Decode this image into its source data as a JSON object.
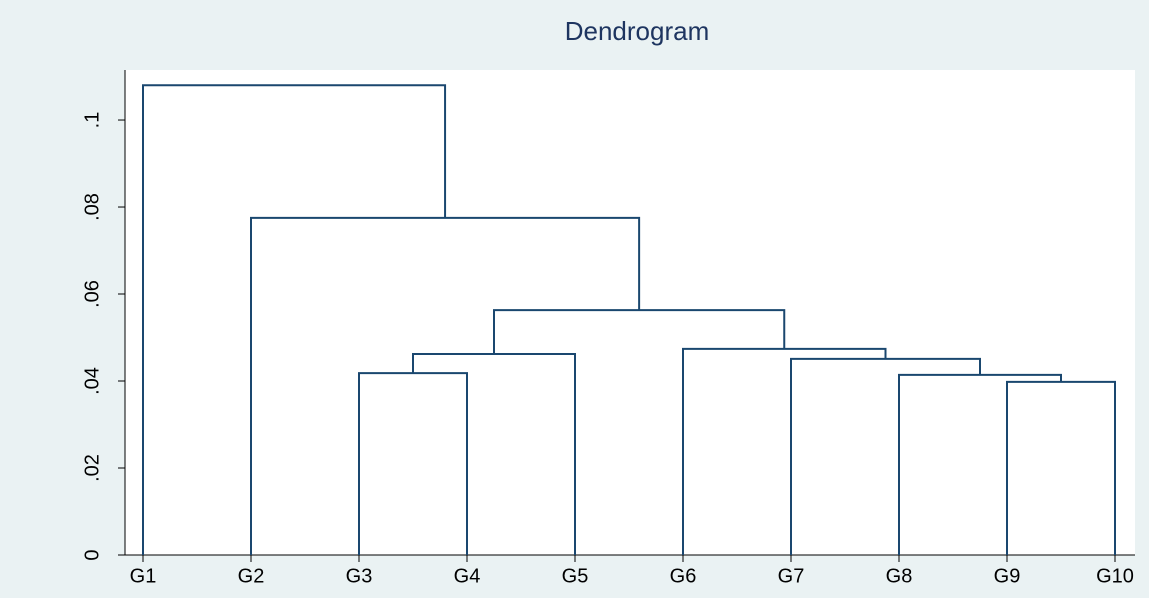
{
  "chart_data": {
    "type": "dendrogram",
    "title": "Dendrogram",
    "categories": [
      "G1",
      "G2",
      "G3",
      "G4",
      "G5",
      "G6",
      "G7",
      "G8",
      "G9",
      "G10"
    ],
    "merges": [
      {
        "join": [
          8,
          9
        ],
        "height": 0.0398
      },
      {
        "join": [
          7,
          10
        ],
        "height": 0.0414
      },
      {
        "join": [
          2,
          3
        ],
        "height": 0.0418
      },
      {
        "join": [
          6,
          11
        ],
        "height": 0.0451
      },
      {
        "join": [
          12,
          4
        ],
        "height": 0.0462
      },
      {
        "join": [
          5,
          13
        ],
        "height": 0.0474
      },
      {
        "join": [
          14,
          15
        ],
        "height": 0.0563
      },
      {
        "join": [
          1,
          16
        ],
        "height": 0.0775
      },
      {
        "join": [
          0,
          17
        ],
        "height": 0.108
      }
    ],
    "color": "#1a476f",
    "ylim": [
      0,
      0.1115
    ],
    "yticks": [
      0,
      {
        "value": 0.02,
        "label": ".02"
      },
      {
        "value": 0.04,
        "label": ".04"
      },
      {
        "value": 0.06,
        "label": ".06"
      },
      {
        "value": 0.08,
        "label": ".08"
      },
      {
        "value": 0.1,
        "label": ".1"
      }
    ],
    "grid": false
  }
}
